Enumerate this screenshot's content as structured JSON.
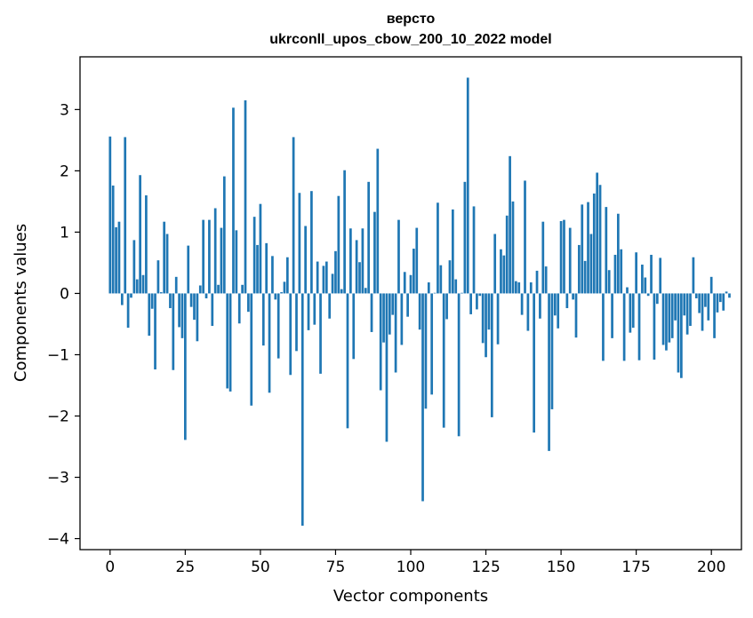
{
  "chart_data": {
    "type": "bar",
    "title_lines": [
      "версто",
      "ukrconll_upos_cbow_200_10_2022 model"
    ],
    "xlabel": "Vector components",
    "ylabel": "Components values",
    "xlim": [
      -10,
      210
    ],
    "ylim": [
      -4.18,
      3.86
    ],
    "xticks": [
      0,
      25,
      50,
      75,
      100,
      125,
      150,
      175,
      200
    ],
    "xtick_labels": [
      "0",
      "25",
      "50",
      "75",
      "100",
      "125",
      "150",
      "175",
      "200"
    ],
    "yticks": [
      -4,
      -3,
      -2,
      -1,
      0,
      1,
      2,
      3
    ],
    "ytick_labels": [
      "−4",
      "−3",
      "−2",
      "−1",
      "0",
      "1",
      "2",
      "3"
    ],
    "bar_color": "#1f77b4",
    "grid": false,
    "legend": "none",
    "values": [
      2.56,
      1.76,
      1.08,
      1.17,
      -0.19,
      2.55,
      -0.56,
      -0.07,
      0.87,
      0.23,
      1.93,
      0.3,
      1.6,
      -0.69,
      -0.25,
      -1.24,
      0.54,
      0.02,
      1.17,
      0.97,
      -0.24,
      -1.25,
      0.27,
      -0.55,
      -0.73,
      -2.39,
      0.78,
      -0.22,
      -0.43,
      -0.78,
      0.13,
      1.2,
      -0.08,
      1.2,
      -0.53,
      1.39,
      0.14,
      1.07,
      1.91,
      -1.55,
      -1.6,
      3.03,
      1.03,
      -0.49,
      0.14,
      3.15,
      -0.3,
      -1.83,
      1.25,
      0.79,
      1.46,
      -0.85,
      0.82,
      -1.62,
      0.61,
      -0.1,
      -1.06,
      0.02,
      0.19,
      0.59,
      -1.33,
      2.55,
      -0.94,
      1.64,
      -3.79,
      1.1,
      -0.6,
      1.67,
      -0.51,
      0.52,
      -1.31,
      0.45,
      0.52,
      -0.41,
      0.32,
      0.69,
      1.59,
      0.07,
      2.01,
      -2.2,
      1.06,
      -1.07,
      0.87,
      0.51,
      1.06,
      0.09,
      1.82,
      -0.63,
      1.33,
      2.36,
      -1.58,
      -0.8,
      -2.42,
      -0.67,
      -0.35,
      -1.29,
      1.2,
      -0.84,
      0.35,
      -0.38,
      0.3,
      0.73,
      1.07,
      -0.59,
      -3.39,
      -1.88,
      0.18,
      -1.65,
      0.01,
      1.48,
      0.46,
      -2.19,
      -0.42,
      0.54,
      1.37,
      0.23,
      -2.33,
      0.01,
      1.82,
      3.52,
      -0.34,
      1.42,
      -0.26,
      -0.04,
      -0.81,
      -1.04,
      -0.59,
      -2.02,
      0.97,
      -0.83,
      0.72,
      0.62,
      1.27,
      2.24,
      1.5,
      0.2,
      0.18,
      -0.35,
      1.84,
      -0.61,
      0.18,
      -2.27,
      0.37,
      -0.41,
      1.17,
      0.44,
      -2.57,
      -1.89,
      -0.36,
      -0.57,
      1.18,
      1.2,
      -0.24,
      1.07,
      -0.1,
      -0.72,
      0.79,
      1.45,
      0.53,
      1.49,
      0.97,
      1.63,
      1.97,
      1.77,
      -1.1,
      1.41,
      0.38,
      -0.73,
      0.63,
      1.3,
      0.72,
      -1.1,
      0.1,
      -0.64,
      -0.56,
      0.67,
      -1.09,
      0.47,
      0.26,
      -0.04,
      0.63,
      -1.08,
      -0.17,
      0.58,
      -0.84,
      -0.93,
      -0.8,
      -0.73,
      -0.44,
      -1.29,
      -1.38,
      -0.36,
      -0.67,
      -0.53,
      0.59,
      -0.08,
      -0.32,
      -0.61,
      -0.22,
      -0.44,
      0.27,
      -0.73,
      -0.31,
      -0.14,
      -0.28,
      0.03,
      -0.07
    ]
  }
}
